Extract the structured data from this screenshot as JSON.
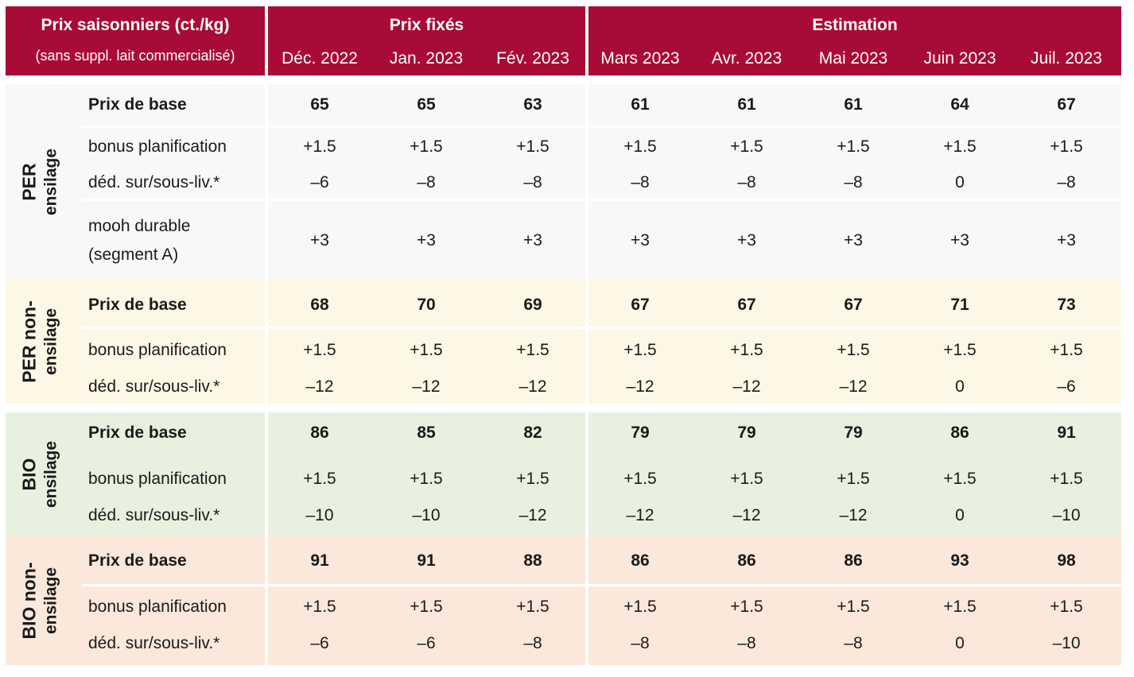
{
  "header": {
    "title": "Prix saisonniers (ct./kg)",
    "subtitle": "(sans suppl. lait commercialisé)",
    "group_fixed": "Prix fixés",
    "group_estimate": "Estimation",
    "months": [
      "Déc. 2022",
      "Jan. 2023",
      "Fév. 2023",
      "Mars 2023",
      "Avr. 2023",
      "Mai 2023",
      "Juin 2023",
      "Juil. 2023"
    ]
  },
  "colors": {
    "header_bg": "#a80c36",
    "per_ensilage_bg": "#f9f8f6",
    "per_non_ensilage_bg": "#fdf8e5",
    "bio_ensilage_bg": "#e8f1e0",
    "bio_non_ensilage_bg": "#fbe8da"
  },
  "groups": [
    {
      "label_line1": "PER",
      "label_line2": "ensilage",
      "rows": [
        {
          "label": "Prix de base",
          "bold": true,
          "values": [
            "65",
            "65",
            "63",
            "61",
            "61",
            "61",
            "64",
            "67"
          ]
        },
        {
          "label": "bonus planification",
          "bold": false,
          "values": [
            "+1.5",
            "+1.5",
            "+1.5",
            "+1.5",
            "+1.5",
            "+1.5",
            "+1.5",
            "+1.5"
          ]
        },
        {
          "label": "déd. sur/sous-liv.*",
          "bold": false,
          "values": [
            "–6",
            "–8",
            "–8",
            "–8",
            "–8",
            "–8",
            "0",
            "–8"
          ]
        },
        {
          "label_line1": "mooh durable",
          "label_line2": "(segment A)",
          "bold": false,
          "values": [
            "+3",
            "+3",
            "+3",
            "+3",
            "+3",
            "+3",
            "+3",
            "+3"
          ]
        }
      ]
    },
    {
      "label_line1": "PER non-",
      "label_line2": "ensilage",
      "rows": [
        {
          "label": "Prix de base",
          "bold": true,
          "values": [
            "68",
            "70",
            "69",
            "67",
            "67",
            "67",
            "71",
            "73"
          ]
        },
        {
          "label": "bonus planification",
          "bold": false,
          "values": [
            "+1.5",
            "+1.5",
            "+1.5",
            "+1.5",
            "+1.5",
            "+1.5",
            "+1.5",
            "+1.5"
          ]
        },
        {
          "label": "déd. sur/sous-liv.*",
          "bold": false,
          "values": [
            "–12",
            "–12",
            "–12",
            "–12",
            "–12",
            "–12",
            "0",
            "–6"
          ]
        }
      ]
    },
    {
      "label_line1": "BIO",
      "label_line2": "ensilage",
      "rows": [
        {
          "label": "Prix de base",
          "bold": true,
          "values": [
            "86",
            "85",
            "82",
            "79",
            "79",
            "79",
            "86",
            "91"
          ]
        },
        {
          "label": "bonus planification",
          "bold": false,
          "values": [
            "+1.5",
            "+1.5",
            "+1.5",
            "+1.5",
            "+1.5",
            "+1.5",
            "+1.5",
            "+1.5"
          ]
        },
        {
          "label": "déd. sur/sous-liv.*",
          "bold": false,
          "values": [
            "–10",
            "–10",
            "–12",
            "–12",
            "–12",
            "–12",
            "0",
            "–10"
          ]
        }
      ]
    },
    {
      "label_line1": "BIO non-",
      "label_line2": "ensilage",
      "rows": [
        {
          "label": "Prix de base",
          "bold": true,
          "values": [
            "91",
            "91",
            "88",
            "86",
            "86",
            "86",
            "93",
            "98"
          ]
        },
        {
          "label": "bonus planification",
          "bold": false,
          "values": [
            "+1.5",
            "+1.5",
            "+1.5",
            "+1.5",
            "+1.5",
            "+1.5",
            "+1.5",
            "+1.5"
          ]
        },
        {
          "label": "déd. sur/sous-liv.*",
          "bold": false,
          "values": [
            "–6",
            "–6",
            "–8",
            "–8",
            "–8",
            "–8",
            "0",
            "–10"
          ]
        }
      ]
    }
  ]
}
